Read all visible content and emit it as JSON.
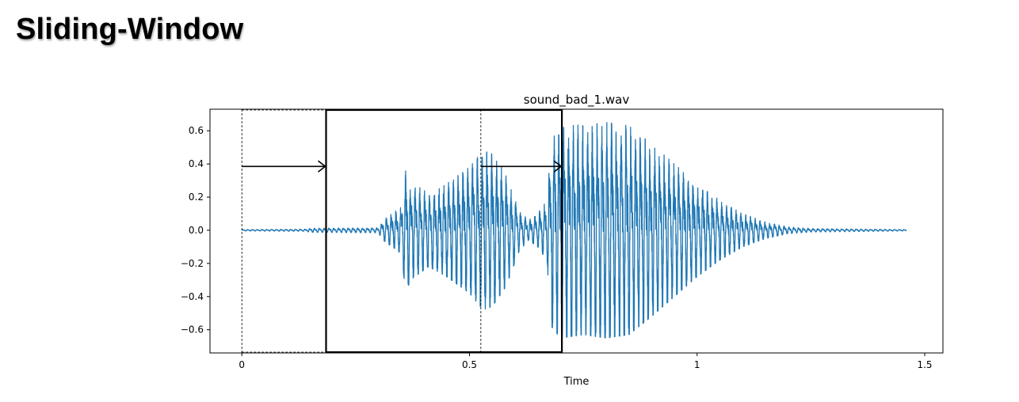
{
  "header": {
    "title": "Sliding-Window"
  },
  "chart_data": {
    "type": "line",
    "title": "sound_bad_1.wav",
    "xlabel": "Time",
    "ylabel": "",
    "xlim": [
      -0.07,
      1.54
    ],
    "ylim": [
      -0.74,
      0.73
    ],
    "x_ticks": [
      {
        "value": 0,
        "label": "0"
      },
      {
        "value": 0.5,
        "label": "0.5"
      },
      {
        "value": 1,
        "label": "1"
      },
      {
        "value": 1.5,
        "label": "1.5"
      }
    ],
    "y_ticks": [
      {
        "value": 0.6,
        "label": "0.6"
      },
      {
        "value": 0.4,
        "label": "0.4"
      },
      {
        "value": 0.2,
        "label": "0.2"
      },
      {
        "value": 0.0,
        "label": "0.0"
      },
      {
        "value": -0.2,
        "label": "−0.2"
      },
      {
        "value": -0.4,
        "label": "−0.4"
      },
      {
        "value": -0.6,
        "label": "−0.6"
      }
    ],
    "grid": false,
    "series": [
      {
        "color": "#1f77b4",
        "duration": 1.46,
        "envelope": [
          {
            "t": 0.0,
            "a": 0.004
          },
          {
            "t": 0.14,
            "a": 0.006
          },
          {
            "t": 0.15,
            "a": 0.012
          },
          {
            "t": 0.3,
            "a": 0.015
          },
          {
            "t": 0.31,
            "a": 0.06
          },
          {
            "t": 0.35,
            "a": 0.14
          },
          {
            "t": 0.36,
            "a": 0.38
          },
          {
            "t": 0.37,
            "a": 0.3
          },
          {
            "t": 0.41,
            "a": 0.22
          },
          {
            "t": 0.45,
            "a": 0.28
          },
          {
            "t": 0.5,
            "a": 0.38
          },
          {
            "t": 0.53,
            "a": 0.48
          },
          {
            "t": 0.55,
            "a": 0.46
          },
          {
            "t": 0.58,
            "a": 0.34
          },
          {
            "t": 0.61,
            "a": 0.12
          },
          {
            "t": 0.63,
            "a": 0.06
          },
          {
            "t": 0.65,
            "a": 0.1
          },
          {
            "t": 0.67,
            "a": 0.18
          },
          {
            "t": 0.68,
            "a": 0.58
          },
          {
            "t": 0.7,
            "a": 0.65
          },
          {
            "t": 0.75,
            "a": 0.63
          },
          {
            "t": 0.8,
            "a": 0.65
          },
          {
            "t": 0.85,
            "a": 0.63
          },
          {
            "t": 0.9,
            "a": 0.52
          },
          {
            "t": 0.95,
            "a": 0.4
          },
          {
            "t": 1.0,
            "a": 0.28
          },
          {
            "t": 1.05,
            "a": 0.18
          },
          {
            "t": 1.1,
            "a": 0.1
          },
          {
            "t": 1.15,
            "a": 0.05
          },
          {
            "t": 1.2,
            "a": 0.02
          },
          {
            "t": 1.25,
            "a": 0.01
          },
          {
            "t": 1.46,
            "a": 0.004
          }
        ]
      }
    ],
    "annotations": {
      "window_start_line_x": 0.0,
      "window": {
        "x_start": 0.185,
        "x_end": 0.703
      },
      "window_mid_line_x": 0.525,
      "arrows": [
        {
          "x_from": 0.0,
          "x_to": 0.185,
          "y": 0.385
        },
        {
          "x_from": 0.525,
          "x_to": 0.703,
          "y": 0.385
        }
      ]
    }
  }
}
